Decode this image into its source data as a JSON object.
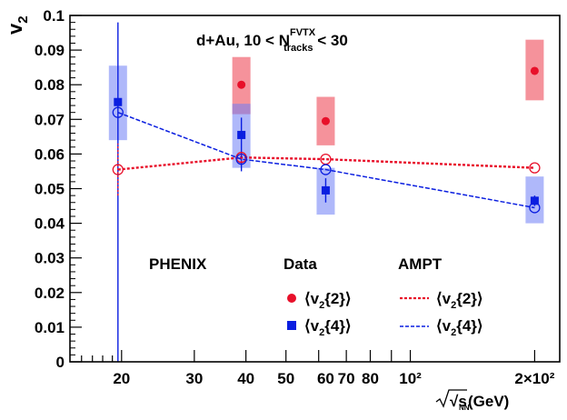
{
  "chart_data": {
    "type": "scatter",
    "xscale": "log",
    "xlim": [
      15,
      230
    ],
    "ylim": [
      0,
      0.1
    ],
    "ylabel": {
      "main": "v",
      "sub": "2"
    },
    "xlabel": {
      "main": "√s",
      "sub": "NN",
      "unit": " (GeV)"
    },
    "annotation": {
      "pre": "d+Au, 10 < N",
      "sup": "FVTX",
      "sub": "tracks",
      "post": " < 30"
    },
    "experiment": "PHENIX",
    "legend": {
      "data_header": "Data",
      "model_header": "AMPT",
      "entries": [
        {
          "pre": "⟨v",
          "sub": "2",
          "post": "{2}⟩"
        },
        {
          "pre": "⟨v",
          "sub": "2",
          "post": "{4}⟩"
        }
      ]
    },
    "y_ticks": [
      {
        "v": 0,
        "t": "0"
      },
      {
        "v": 0.01,
        "t": "0.01"
      },
      {
        "v": 0.02,
        "t": "0.02"
      },
      {
        "v": 0.03,
        "t": "0.03"
      },
      {
        "v": 0.04,
        "t": "0.04"
      },
      {
        "v": 0.05,
        "t": "0.05"
      },
      {
        "v": 0.06,
        "t": "0.06"
      },
      {
        "v": 0.07,
        "t": "0.07"
      },
      {
        "v": 0.08,
        "t": "0.08"
      },
      {
        "v": 0.09,
        "t": "0.09"
      },
      {
        "v": 0.1,
        "t": "0.1"
      }
    ],
    "x_ticks": [
      {
        "v": 20,
        "t": "20"
      },
      {
        "v": 30,
        "t": "30"
      },
      {
        "v": 40,
        "t": "40"
      },
      {
        "v": 50,
        "t": "50"
      },
      {
        "v": 62.4,
        "t": "60"
      },
      {
        "v": 70,
        "t": "70"
      },
      {
        "v": 80,
        "t": "80"
      },
      {
        "v": 100,
        "t": "10²"
      },
      {
        "v": 200,
        "t": "2×10²"
      }
    ],
    "series": [
      {
        "name": "Data v2{2}",
        "color": "#e8102a",
        "marker": "circle-filled",
        "points": [
          {
            "x": 39,
            "y": 0.08,
            "sys": [
              0.0715,
              0.088
            ]
          },
          {
            "x": 62.4,
            "y": 0.0695,
            "sys": [
              0.0625,
              0.0765
            ]
          },
          {
            "x": 200,
            "y": 0.084,
            "sys": [
              0.0755,
              0.093
            ]
          }
        ]
      },
      {
        "name": "Data v2{4}",
        "color": "#0a1ee0",
        "marker": "square-filled",
        "points": [
          {
            "x": 19.6,
            "y": 0.075,
            "sys": [
              0.064,
              0.0855
            ],
            "err": [
              0,
              0.098
            ]
          },
          {
            "x": 39,
            "y": 0.0655,
            "sys": [
              0.056,
              0.0745
            ],
            "err": [
              0.055,
              0.0705
            ]
          },
          {
            "x": 62.4,
            "y": 0.0495,
            "sys": [
              0.0425,
              0.056
            ],
            "err": [
              0.046,
              0.053
            ]
          },
          {
            "x": 200,
            "y": 0.0465,
            "sys": [
              0.04,
              0.0535
            ],
            "err": [
              0.045,
              0.048
            ]
          }
        ]
      },
      {
        "name": "AMPT v2{2}",
        "color": "#e8102a",
        "marker": "circle-open",
        "line": "dotted",
        "points": [
          {
            "x": 19.6,
            "y": 0.0555,
            "err": [
              0.048,
              0.063
            ]
          },
          {
            "x": 39,
            "y": 0.059,
            "err": [
              0.0575,
              0.0605
            ]
          },
          {
            "x": 62.4,
            "y": 0.0585
          },
          {
            "x": 200,
            "y": 0.056
          }
        ]
      },
      {
        "name": "AMPT v2{4}",
        "color": "#0a1ee0",
        "marker": "circle-open",
        "line": "dashed",
        "points": [
          {
            "x": 19.6,
            "y": 0.072
          },
          {
            "x": 39,
            "y": 0.0585
          },
          {
            "x": 62.4,
            "y": 0.0555
          },
          {
            "x": 200,
            "y": 0.0445
          }
        ]
      }
    ]
  }
}
